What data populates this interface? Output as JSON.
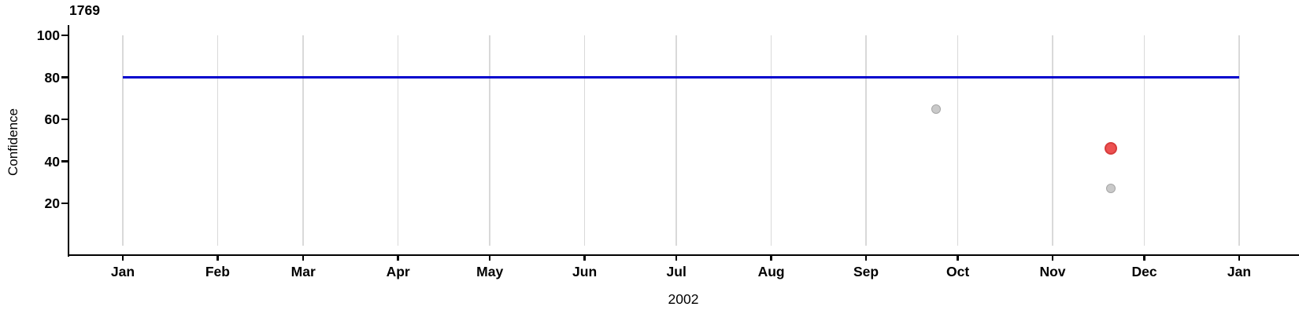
{
  "chart_data": {
    "type": "scatter",
    "title": "1769",
    "xlabel": "2002",
    "ylabel": "Confidence",
    "x_axis": {
      "start_date": "2002-01-01",
      "end_date": "2003-01-01",
      "tick_labels": [
        "Jan",
        "Feb",
        "Mar",
        "Apr",
        "May",
        "Jun",
        "Jul",
        "Aug",
        "Sep",
        "Oct",
        "Nov",
        "Dec",
        "Jan"
      ],
      "grid": true
    },
    "y_axis": {
      "tick_values": [
        100,
        80,
        60,
        40,
        20
      ],
      "range": [
        -4,
        105
      ],
      "grid": false
    },
    "reference_line": {
      "value": 80,
      "color": "#0000cd"
    },
    "points": [
      {
        "date": "2002-09-24",
        "value": 65,
        "series": "normal",
        "fill": "#c9c9c9",
        "stroke": "#a6a6a6",
        "size": "small"
      },
      {
        "date": "2002-11-20",
        "value": 46,
        "series": "highlighted",
        "fill": "#ed5151",
        "stroke": "#d63c3c",
        "size": "large"
      },
      {
        "date": "2002-11-20",
        "value": 27,
        "series": "normal",
        "fill": "#c9c9c9",
        "stroke": "#a6a6a6",
        "size": "small"
      }
    ],
    "colors": {
      "axis": "#000000",
      "grid": "#d9d9d9",
      "text": "#000000"
    }
  }
}
